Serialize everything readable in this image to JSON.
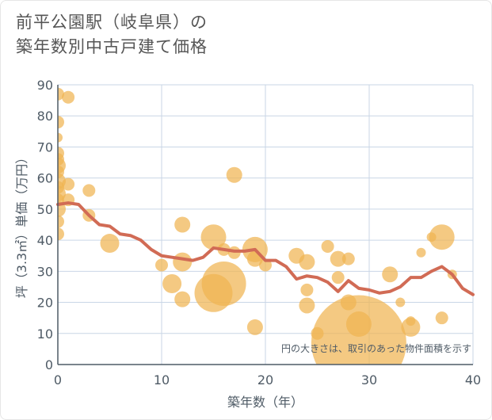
{
  "title_line1": "前平公園駅（岐阜県）の",
  "title_line2": "築年数別中古戸建て価格",
  "note": "円の大きさは、取引のあった物件面積を示す",
  "colors": {
    "bubble": "#f0b452",
    "line": "#d16b55",
    "grid": "#c9d6e6",
    "axis": "#4f5b66"
  },
  "chart_data": {
    "type": "scatter",
    "xlabel": "築年数（年）",
    "ylabel": "坪（3.3㎡）単価（万円）",
    "xlim": [
      0,
      40
    ],
    "ylim": [
      0,
      90
    ],
    "xticks": [
      0,
      10,
      20,
      30,
      40
    ],
    "yticks": [
      0,
      10,
      20,
      30,
      40,
      50,
      60,
      70,
      80,
      90
    ],
    "grid": true,
    "bubbles": [
      {
        "x": 0,
        "y": 87,
        "s": 2
      },
      {
        "x": 1,
        "y": 86,
        "s": 2
      },
      {
        "x": 0,
        "y": 78,
        "s": 2
      },
      {
        "x": 0,
        "y": 73,
        "s": 1.5
      },
      {
        "x": 0,
        "y": 68,
        "s": 2
      },
      {
        "x": 0,
        "y": 66,
        "s": 2
      },
      {
        "x": 0,
        "y": 64,
        "s": 2.5
      },
      {
        "x": 0,
        "y": 62,
        "s": 2
      },
      {
        "x": 0,
        "y": 59,
        "s": 2.5
      },
      {
        "x": 0,
        "y": 57,
        "s": 2
      },
      {
        "x": 1,
        "y": 58,
        "s": 2
      },
      {
        "x": 0,
        "y": 55,
        "s": 2.5
      },
      {
        "x": 0,
        "y": 53,
        "s": 2
      },
      {
        "x": 1,
        "y": 53,
        "s": 2
      },
      {
        "x": 0,
        "y": 50,
        "s": 2.5
      },
      {
        "x": 0,
        "y": 46,
        "s": 2
      },
      {
        "x": 0,
        "y": 42,
        "s": 2
      },
      {
        "x": 3,
        "y": 56,
        "s": 2
      },
      {
        "x": 3,
        "y": 48,
        "s": 2
      },
      {
        "x": 5,
        "y": 39,
        "s": 3
      },
      {
        "x": 10,
        "y": 32,
        "s": 2
      },
      {
        "x": 11,
        "y": 26,
        "s": 3
      },
      {
        "x": 12,
        "y": 45,
        "s": 2.5
      },
      {
        "x": 12,
        "y": 33,
        "s": 3
      },
      {
        "x": 12,
        "y": 21,
        "s": 2.5
      },
      {
        "x": 15,
        "y": 41,
        "s": 4
      },
      {
        "x": 15,
        "y": 23,
        "s": 6
      },
      {
        "x": 16,
        "y": 26,
        "s": 7
      },
      {
        "x": 16,
        "y": 37,
        "s": 2
      },
      {
        "x": 17,
        "y": 36,
        "s": 2
      },
      {
        "x": 17,
        "y": 61,
        "s": 2.5
      },
      {
        "x": 19,
        "y": 37,
        "s": 4
      },
      {
        "x": 19,
        "y": 34,
        "s": 2.5
      },
      {
        "x": 19,
        "y": 12,
        "s": 2.5
      },
      {
        "x": 20,
        "y": 32,
        "s": 2
      },
      {
        "x": 23,
        "y": 35,
        "s": 2.5
      },
      {
        "x": 24,
        "y": 33,
        "s": 2.5
      },
      {
        "x": 24,
        "y": 24,
        "s": 2
      },
      {
        "x": 24,
        "y": 19,
        "s": 2.5
      },
      {
        "x": 25,
        "y": 10,
        "s": 2
      },
      {
        "x": 26,
        "y": 38,
        "s": 2
      },
      {
        "x": 27,
        "y": 34,
        "s": 2.5
      },
      {
        "x": 27,
        "y": 28,
        "s": 2
      },
      {
        "x": 28,
        "y": 34,
        "s": 2
      },
      {
        "x": 28,
        "y": 20,
        "s": 2.5
      },
      {
        "x": 29,
        "y": 13,
        "s": 4
      },
      {
        "x": 29,
        "y": 7,
        "s": 15
      },
      {
        "x": 32,
        "y": 29,
        "s": 2.5
      },
      {
        "x": 33,
        "y": 20,
        "s": 1.5
      },
      {
        "x": 34,
        "y": 14,
        "s": 1.5
      },
      {
        "x": 34,
        "y": 12,
        "s": 3
      },
      {
        "x": 35,
        "y": 36,
        "s": 1.5
      },
      {
        "x": 36,
        "y": 41,
        "s": 1.5
      },
      {
        "x": 37,
        "y": 41,
        "s": 4
      },
      {
        "x": 37,
        "y": 15,
        "s": 2
      },
      {
        "x": 38,
        "y": 29,
        "s": 1.5
      }
    ],
    "line": {
      "x": [
        0,
        1,
        2,
        3,
        4,
        5,
        6,
        7,
        8,
        9,
        10,
        11,
        12,
        13,
        14,
        15,
        16,
        17,
        18,
        19,
        20,
        21,
        22,
        23,
        24,
        25,
        26,
        27,
        28,
        29,
        30,
        31,
        32,
        33,
        34,
        35,
        36,
        37,
        38,
        39,
        40
      ],
      "y": [
        51.5,
        52,
        51.5,
        48,
        45,
        44.5,
        42,
        41.5,
        40,
        37,
        35,
        34.5,
        34,
        33.5,
        34.5,
        37.5,
        37,
        36.5,
        36.5,
        37,
        33.5,
        33.5,
        31.5,
        27.5,
        28.5,
        28,
        26.5,
        23.5,
        27,
        24.5,
        24,
        23,
        23.5,
        25,
        28,
        28,
        30,
        31.5,
        29,
        24.5,
        22.5
      ]
    }
  }
}
